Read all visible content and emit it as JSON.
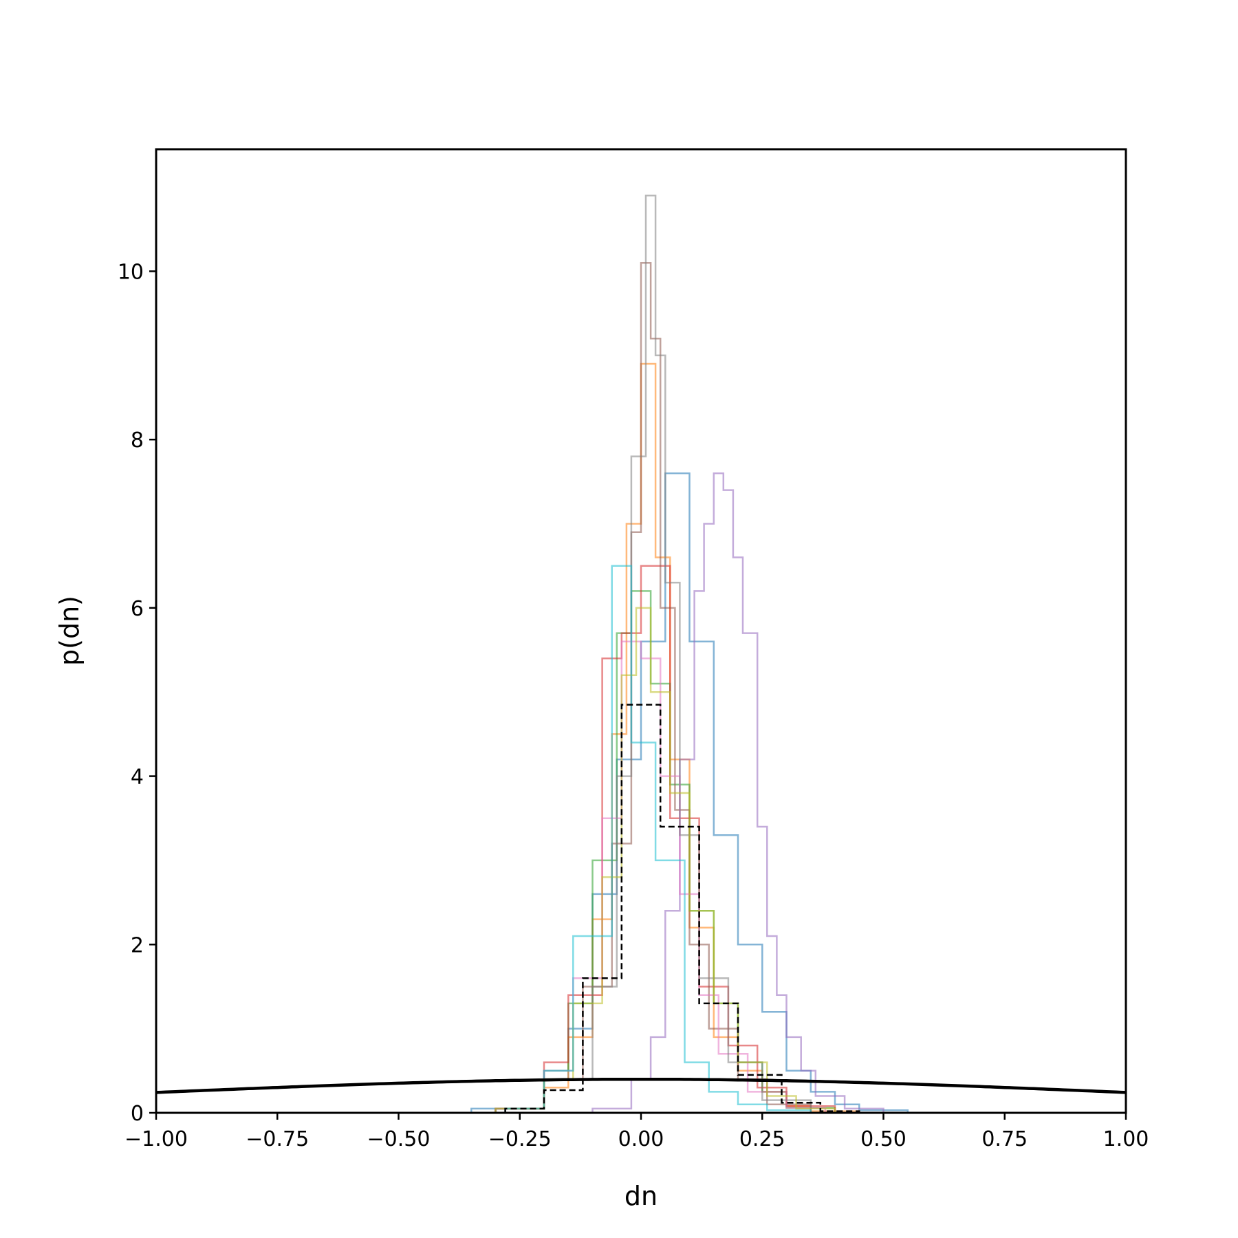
{
  "chart_data": {
    "type": "histogram",
    "xlabel": "dn",
    "ylabel": "p(dn)",
    "xlim": [
      -1.0,
      1.0
    ],
    "ylim": [
      0,
      11.45
    ],
    "xticks": [
      -1.0,
      -0.75,
      -0.5,
      -0.25,
      0.0,
      0.25,
      0.5,
      0.75,
      1.0
    ],
    "xtick_labels": [
      "−1.00",
      "−0.75",
      "−0.50",
      "−0.25",
      "0.00",
      "0.25",
      "0.50",
      "0.75",
      "1.00"
    ],
    "yticks": [
      0,
      2,
      4,
      6,
      8,
      10
    ],
    "ytick_labels": [
      "0",
      "2",
      "4",
      "6",
      "8",
      "10"
    ],
    "grid": false,
    "legend": "none",
    "reference_curve": {
      "style": "solid",
      "color": "#000000",
      "distribution": "normal",
      "mean": 0.0,
      "sd": 1.0
    },
    "series": [
      {
        "color": "#1f77b4",
        "style": "step",
        "opacity": 0.55,
        "bin_edges": [
          -0.35,
          -0.2,
          -0.15,
          -0.1,
          -0.05,
          0.0,
          0.05,
          0.1,
          0.15,
          0.2,
          0.25,
          0.3,
          0.35,
          0.4,
          0.45,
          0.55
        ],
        "density": [
          0.05,
          0.4,
          1.0,
          2.6,
          4.2,
          5.6,
          7.6,
          5.6,
          3.3,
          2.0,
          1.2,
          0.5,
          0.25,
          0.1,
          0.03
        ]
      },
      {
        "color": "#ff7f0e",
        "style": "step",
        "opacity": 0.55,
        "bin_edges": [
          -0.3,
          -0.2,
          -0.15,
          -0.1,
          -0.06,
          -0.03,
          0.0,
          0.03,
          0.06,
          0.1,
          0.15,
          0.2,
          0.25,
          0.3,
          0.35,
          0.45
        ],
        "density": [
          0.05,
          0.3,
          0.9,
          2.3,
          4.5,
          7.0,
          8.9,
          6.6,
          4.2,
          2.2,
          0.9,
          0.5,
          0.25,
          0.08,
          0.02
        ]
      },
      {
        "color": "#2ca02c",
        "style": "step",
        "opacity": 0.55,
        "bin_edges": [
          -0.3,
          -0.2,
          -0.15,
          -0.1,
          -0.05,
          -0.02,
          0.02,
          0.06,
          0.1,
          0.15,
          0.2,
          0.25,
          0.3,
          0.4
        ],
        "density": [
          0.05,
          0.5,
          1.3,
          3.0,
          5.7,
          6.2,
          5.1,
          3.9,
          2.4,
          1.3,
          0.6,
          0.25,
          0.06
        ]
      },
      {
        "color": "#d62728",
        "style": "step",
        "opacity": 0.55,
        "bin_edges": [
          -0.3,
          -0.2,
          -0.15,
          -0.08,
          -0.04,
          0.0,
          0.06,
          0.12,
          0.18,
          0.24,
          0.3,
          0.4
        ],
        "density": [
          0.05,
          0.6,
          1.4,
          5.4,
          5.7,
          6.5,
          3.5,
          1.5,
          0.8,
          0.3,
          0.08
        ]
      },
      {
        "color": "#9467bd",
        "style": "step",
        "opacity": 0.55,
        "bin_edges": [
          -0.1,
          -0.02,
          0.02,
          0.05,
          0.08,
          0.11,
          0.13,
          0.15,
          0.17,
          0.19,
          0.21,
          0.24,
          0.26,
          0.28,
          0.3,
          0.33,
          0.36,
          0.42,
          0.5
        ],
        "density": [
          0.05,
          0.4,
          0.9,
          2.4,
          4.2,
          6.2,
          7.0,
          7.6,
          7.4,
          6.6,
          5.7,
          3.4,
          2.1,
          1.4,
          0.9,
          0.5,
          0.2,
          0.05
        ]
      },
      {
        "color": "#8c564b",
        "style": "step",
        "opacity": 0.55,
        "bin_edges": [
          -0.3,
          -0.2,
          -0.12,
          -0.06,
          -0.02,
          0.0,
          0.02,
          0.04,
          0.07,
          0.1,
          0.14,
          0.2,
          0.26,
          0.35
        ],
        "density": [
          0.05,
          0.4,
          1.5,
          3.2,
          6.9,
          10.1,
          9.2,
          6.0,
          3.6,
          2.0,
          1.0,
          0.4,
          0.1
        ]
      },
      {
        "color": "#e377c2",
        "style": "step",
        "opacity": 0.55,
        "bin_edges": [
          -0.3,
          -0.2,
          -0.14,
          -0.08,
          -0.04,
          0.0,
          0.04,
          0.08,
          0.12,
          0.16,
          0.22,
          0.3,
          0.38
        ],
        "density": [
          0.05,
          0.5,
          1.6,
          3.5,
          5.6,
          5.4,
          4.0,
          2.6,
          1.4,
          0.7,
          0.25,
          0.06
        ]
      },
      {
        "color": "#7f7f7f",
        "style": "step",
        "opacity": 0.55,
        "bin_edges": [
          -0.3,
          -0.2,
          -0.1,
          -0.05,
          -0.02,
          0.01,
          0.03,
          0.05,
          0.08,
          0.12,
          0.18,
          0.25,
          0.35
        ],
        "density": [
          0.05,
          0.4,
          1.5,
          4.0,
          7.8,
          10.9,
          9.0,
          6.3,
          3.3,
          1.6,
          0.6,
          0.15
        ]
      },
      {
        "color": "#bcbd22",
        "style": "step",
        "opacity": 0.55,
        "bin_edges": [
          -0.3,
          -0.2,
          -0.14,
          -0.08,
          -0.04,
          -0.01,
          0.02,
          0.06,
          0.1,
          0.15,
          0.2,
          0.26,
          0.32,
          0.4
        ],
        "density": [
          0.05,
          0.4,
          1.3,
          2.8,
          5.2,
          6.0,
          5.0,
          3.8,
          2.4,
          1.3,
          0.6,
          0.2,
          0.05
        ]
      },
      {
        "color": "#17becf",
        "style": "step",
        "opacity": 0.55,
        "bin_edges": [
          -0.28,
          -0.2,
          -0.14,
          -0.06,
          -0.02,
          0.03,
          0.09,
          0.14,
          0.2,
          0.26,
          0.35
        ],
        "density": [
          0.05,
          0.5,
          2.1,
          6.5,
          4.4,
          3.0,
          0.6,
          0.25,
          0.1,
          0.03
        ]
      },
      {
        "color": "#000000",
        "style": "dashed-step",
        "opacity": 1.0,
        "bin_edges": [
          -0.28,
          -0.2,
          -0.12,
          -0.04,
          0.04,
          0.12,
          0.2,
          0.29,
          0.37,
          0.45
        ],
        "density": [
          0.05,
          0.27,
          1.6,
          4.85,
          3.4,
          1.3,
          0.45,
          0.12,
          0.02
        ]
      }
    ]
  }
}
